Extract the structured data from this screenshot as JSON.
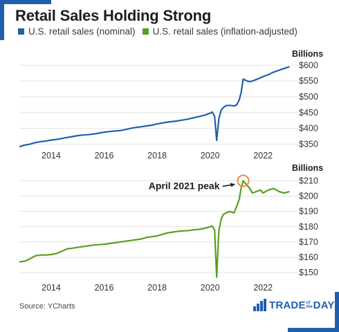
{
  "title": "Retail Sales Holding Strong",
  "source": "Source: YCharts",
  "logo": {
    "part1": "TRADE",
    "part2a": "of",
    "part2b": "the",
    "part3": "DAY"
  },
  "colors": {
    "nominal": "#1f5fad",
    "adjusted": "#5a9e1e",
    "highlight": "#f08a3c",
    "brand": "#1f5fad"
  },
  "legend": [
    {
      "label": "U.S. retail sales (nominal)",
      "color": "#1f5fad"
    },
    {
      "label": "U.S. retail sales (inflation-adjusted)",
      "color": "#5a9e1e"
    }
  ],
  "chart_data": [
    {
      "type": "line",
      "unit_label": "Billions",
      "x_ticks": [
        "2014",
        "2016",
        "2018",
        "2020",
        "2022"
      ],
      "x_range": [
        2012.8,
        2023.3
      ],
      "ylim": [
        340,
        605
      ],
      "y_ticks": [
        350,
        400,
        450,
        500,
        550,
        600
      ],
      "y_tick_labels": [
        "$350",
        "$400",
        "$450",
        "$500",
        "$550",
        "$600"
      ],
      "grid": "horizontal",
      "series": [
        {
          "color": "#1f5fad",
          "x": [
            2012.8,
            2013.0,
            2013.2,
            2013.4,
            2013.6,
            2013.8,
            2014.0,
            2014.2,
            2014.4,
            2014.6,
            2014.8,
            2015.0,
            2015.2,
            2015.4,
            2015.6,
            2015.8,
            2016.0,
            2016.2,
            2016.4,
            2016.6,
            2016.8,
            2017.0,
            2017.2,
            2017.4,
            2017.6,
            2017.8,
            2018.0,
            2018.2,
            2018.4,
            2018.6,
            2018.8,
            2019.0,
            2019.2,
            2019.4,
            2019.6,
            2019.8,
            2020.0,
            2020.08,
            2020.17,
            2020.25,
            2020.33,
            2020.42,
            2020.5,
            2020.6,
            2020.75,
            2020.9,
            2021.0,
            2021.1,
            2021.17,
            2021.25,
            2021.4,
            2021.5,
            2021.6,
            2021.75,
            2021.9,
            2022.0,
            2022.2,
            2022.4,
            2022.6,
            2022.8,
            2023.0
          ],
          "y": [
            342,
            347,
            350,
            355,
            358,
            360,
            363,
            365,
            368,
            371,
            374,
            377,
            379,
            380,
            382,
            385,
            388,
            390,
            392,
            393,
            396,
            400,
            403,
            405,
            408,
            410,
            414,
            417,
            420,
            422,
            424,
            427,
            430,
            434,
            438,
            442,
            448,
            452,
            438,
            362,
            430,
            458,
            466,
            472,
            473,
            471,
            474,
            490,
            513,
            556,
            550,
            548,
            550,
            555,
            560,
            564,
            570,
            578,
            584,
            590,
            595
          ]
        }
      ]
    },
    {
      "type": "line",
      "unit_label": "Billions",
      "x_ticks": [
        "2014",
        "2016",
        "2018",
        "2020",
        "2022"
      ],
      "x_range": [
        2012.8,
        2023.3
      ],
      "ylim": [
        146,
        212
      ],
      "y_ticks": [
        150,
        160,
        170,
        180,
        190,
        200,
        210
      ],
      "y_tick_labels": [
        "$150",
        "$160",
        "$170",
        "$180",
        "$190",
        "$200",
        "$210"
      ],
      "grid": "horizontal",
      "annotation": {
        "text": "April 2021 peak",
        "x": 2021.25,
        "y": 210
      },
      "series": [
        {
          "color": "#5a9e1e",
          "x": [
            2012.8,
            2013.0,
            2013.2,
            2013.4,
            2013.6,
            2013.8,
            2014.0,
            2014.2,
            2014.4,
            2014.6,
            2014.8,
            2015.0,
            2015.2,
            2015.4,
            2015.6,
            2015.8,
            2016.0,
            2016.2,
            2016.4,
            2016.6,
            2016.8,
            2017.0,
            2017.2,
            2017.4,
            2017.6,
            2017.8,
            2018.0,
            2018.2,
            2018.4,
            2018.6,
            2018.8,
            2019.0,
            2019.2,
            2019.4,
            2019.6,
            2019.8,
            2020.0,
            2020.08,
            2020.17,
            2020.25,
            2020.33,
            2020.42,
            2020.5,
            2020.6,
            2020.75,
            2020.9,
            2021.0,
            2021.1,
            2021.17,
            2021.25,
            2021.4,
            2021.5,
            2021.6,
            2021.75,
            2021.9,
            2022.0,
            2022.2,
            2022.4,
            2022.6,
            2022.8,
            2023.0
          ],
          "y": [
            157,
            157.5,
            159,
            161,
            161.5,
            161.5,
            161.8,
            162.5,
            164,
            165.5,
            166,
            166.5,
            167,
            167.5,
            168,
            168.3,
            168.5,
            169,
            169.5,
            170,
            170.5,
            171,
            171.5,
            172,
            173,
            173.5,
            174,
            175,
            176,
            176.5,
            177,
            177.3,
            177.5,
            178,
            178.3,
            179,
            180,
            180.5,
            178,
            147,
            177,
            185,
            188,
            189,
            190,
            189,
            193,
            198,
            205,
            210,
            207,
            205,
            202,
            203,
            204,
            202,
            204,
            205,
            203,
            202,
            203
          ]
        }
      ]
    }
  ]
}
